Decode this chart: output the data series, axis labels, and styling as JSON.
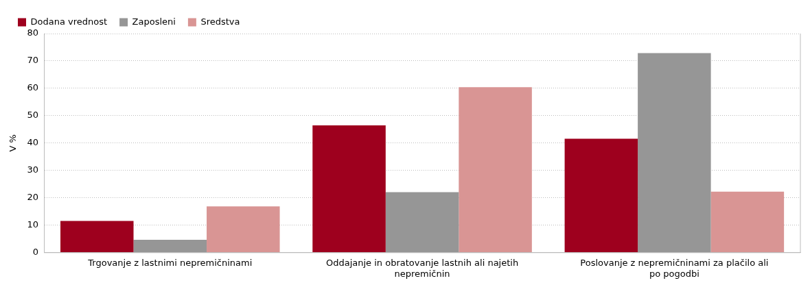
{
  "chart_data": {
    "type": "bar",
    "ylabel": "V %",
    "categories": [
      "Trgovanje z lastnimi nepremičninami",
      "Oddajanje in obratovanje lastnih ali najetih nepremičnin",
      "Poslovanje z nepremičninami za plačilo ali po pogodbi"
    ],
    "series": [
      {
        "name": "Dodana vrednost",
        "color": "#9e001e",
        "values": [
          11.6,
          46.5,
          41.6
        ]
      },
      {
        "name": "Zaposleni",
        "color": "#969696",
        "values": [
          4.7,
          22.1,
          72.9
        ]
      },
      {
        "name": "Sredstva",
        "color": "#d99594",
        "values": [
          16.9,
          60.4,
          22.3
        ]
      }
    ],
    "ylim": [
      0,
      80
    ],
    "yticks": [
      0,
      10,
      20,
      30,
      40,
      50,
      60,
      70,
      80
    ],
    "grid": "y",
    "legend": "top left"
  }
}
